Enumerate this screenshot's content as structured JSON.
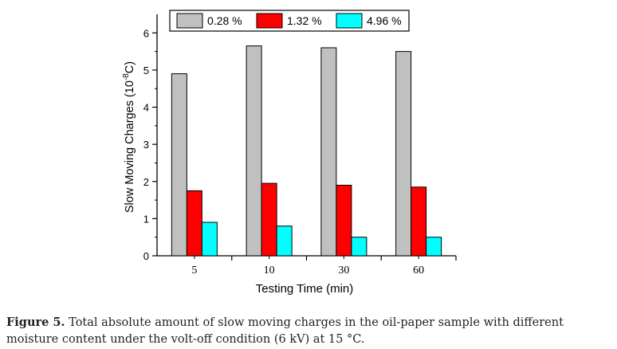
{
  "chart_data": {
    "type": "bar",
    "categories": [
      "5",
      "10",
      "30",
      "60"
    ],
    "series": [
      {
        "name": "0.28 %",
        "color": "#c0c0c0",
        "values": [
          4.9,
          5.65,
          5.6,
          5.5
        ]
      },
      {
        "name": "1.32 %",
        "color": "#ff0000",
        "values": [
          1.75,
          1.95,
          1.9,
          1.85
        ]
      },
      {
        "name": "4.96 %",
        "color": "#00ffff",
        "values": [
          0.9,
          0.8,
          0.5,
          0.5
        ]
      }
    ],
    "xlabel": "Testing Time (min)",
    "ylabel_main": "Slow Moving Charges (10",
    "ylabel_exp": "-8",
    "ylabel_unit": "C)",
    "ylim": [
      0,
      6.5
    ],
    "yticks": [
      "0",
      "1",
      "2",
      "3",
      "4",
      "5",
      "6"
    ],
    "legend_position": "top",
    "grid": false
  },
  "caption": {
    "label": "Figure 5.",
    "text": " Total absolute amount of slow moving charges in the oil-paper sample with different moisture content under the volt-off condition (6 kV) at 15 °C."
  }
}
